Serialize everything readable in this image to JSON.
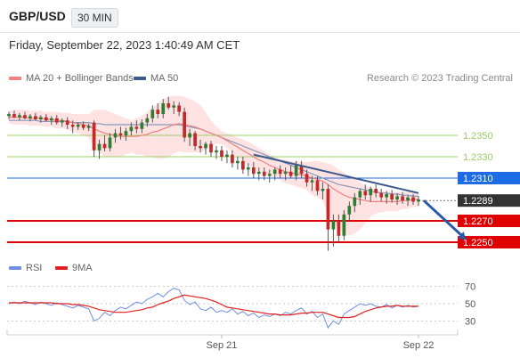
{
  "header": {
    "pair": "GBP/USD",
    "timeframe": "30 MIN"
  },
  "datetime": "Friday, September 22, 2023 1:40:49 AM CET",
  "legend": {
    "ma20": {
      "label": "MA 20 + Bollinger Bands",
      "color": "#f08080"
    },
    "ma50": {
      "label": "MA 50",
      "color": "#3b5a8c"
    }
  },
  "credit": "Research © 2023 Trading Central",
  "rsi_legend": {
    "rsi": {
      "label": "RSI",
      "color": "#6f8fe0"
    },
    "ma9": {
      "label": "9MA",
      "color": "#e02020"
    }
  },
  "chart_data": [
    {
      "type": "candlestick",
      "name": "price",
      "ylim": [
        1.2235,
        1.2395
      ],
      "x_ticks": [
        {
          "label": "Sep 21",
          "index": 40
        },
        {
          "label": "Sep 22",
          "index": 77
        }
      ],
      "levels": [
        {
          "value": 1.235,
          "label": "1.2350",
          "kind": "resistance-minor",
          "color": "#9ccc65"
        },
        {
          "value": 1.233,
          "label": "1.2330",
          "kind": "resistance-minor",
          "color": "#9ccc65"
        },
        {
          "value": 1.231,
          "label": "1.2310",
          "kind": "pivot",
          "color": "#1e6be6"
        },
        {
          "value": 1.2289,
          "label": "1.2289",
          "kind": "last-price",
          "color": "#333333"
        },
        {
          "value": 1.227,
          "label": "1.2270",
          "kind": "support",
          "color": "#e00000"
        },
        {
          "value": 1.225,
          "label": "1.2250",
          "kind": "support",
          "color": "#e00000"
        }
      ],
      "candles_ohlc": [
        [
          1.2368,
          1.2372,
          1.2365,
          1.237
        ],
        [
          1.237,
          1.2373,
          1.2366,
          1.2367
        ],
        [
          1.2367,
          1.2371,
          1.2364,
          1.2369
        ],
        [
          1.2369,
          1.2372,
          1.2365,
          1.2366
        ],
        [
          1.2366,
          1.237,
          1.2363,
          1.2368
        ],
        [
          1.2368,
          1.2371,
          1.2364,
          1.2365
        ],
        [
          1.2365,
          1.2369,
          1.2362,
          1.2367
        ],
        [
          1.2367,
          1.237,
          1.2363,
          1.2364
        ],
        [
          1.2364,
          1.2368,
          1.236,
          1.2366
        ],
        [
          1.2366,
          1.2369,
          1.236,
          1.2362
        ],
        [
          1.2362,
          1.2366,
          1.2358,
          1.2364
        ],
        [
          1.2364,
          1.2367,
          1.2356,
          1.236
        ],
        [
          1.236,
          1.2364,
          1.2352,
          1.2358
        ],
        [
          1.2358,
          1.2362,
          1.2355,
          1.236
        ],
        [
          1.236,
          1.2363,
          1.2355,
          1.2357
        ],
        [
          1.2357,
          1.2361,
          1.2354,
          1.2359
        ],
        [
          1.2362,
          1.2364,
          1.233,
          1.2336
        ],
        [
          1.2336,
          1.2346,
          1.2328,
          1.2342
        ],
        [
          1.2342,
          1.235,
          1.2335,
          1.2338
        ],
        [
          1.2338,
          1.2352,
          1.2335,
          1.2348
        ],
        [
          1.2348,
          1.2356,
          1.2343,
          1.2352
        ],
        [
          1.2352,
          1.2358,
          1.2346,
          1.235
        ],
        [
          1.235,
          1.2357,
          1.2345,
          1.2354
        ],
        [
          1.2354,
          1.2362,
          1.235,
          1.2358
        ],
        [
          1.2358,
          1.2364,
          1.2352,
          1.2356
        ],
        [
          1.2356,
          1.2365,
          1.2352,
          1.2362
        ],
        [
          1.2362,
          1.237,
          1.2358,
          1.2366
        ],
        [
          1.2366,
          1.2378,
          1.2362,
          1.2374
        ],
        [
          1.2374,
          1.238,
          1.2366,
          1.237
        ],
        [
          1.237,
          1.2384,
          1.2366,
          1.238
        ],
        [
          1.238,
          1.2386,
          1.2374,
          1.2376
        ],
        [
          1.2376,
          1.2382,
          1.237,
          1.2378
        ],
        [
          1.2378,
          1.2381,
          1.2368,
          1.2372
        ],
        [
          1.2372,
          1.2376,
          1.2344,
          1.2348
        ],
        [
          1.2348,
          1.2356,
          1.234,
          1.2352
        ],
        [
          1.2352,
          1.2354,
          1.2336,
          1.234
        ],
        [
          1.234,
          1.2346,
          1.2334,
          1.2338
        ],
        [
          1.2338,
          1.2344,
          1.2332,
          1.2342
        ],
        [
          1.2342,
          1.2345,
          1.233,
          1.2334
        ],
        [
          1.2334,
          1.234,
          1.2328,
          1.2336
        ],
        [
          1.2336,
          1.234,
          1.2326,
          1.233
        ],
        [
          1.233,
          1.2336,
          1.2324,
          1.2332
        ],
        [
          1.2332,
          1.2336,
          1.232,
          1.2324
        ],
        [
          1.2324,
          1.233,
          1.2318,
          1.2326
        ],
        [
          1.2326,
          1.233,
          1.2314,
          1.2318
        ],
        [
          1.2318,
          1.2324,
          1.2312,
          1.232
        ],
        [
          1.232,
          1.2325,
          1.231,
          1.2314
        ],
        [
          1.2314,
          1.232,
          1.2308,
          1.2316
        ],
        [
          1.2316,
          1.232,
          1.2308,
          1.2312
        ],
        [
          1.2312,
          1.2318,
          1.2306,
          1.2314
        ],
        [
          1.2314,
          1.232,
          1.2308,
          1.2318
        ],
        [
          1.2318,
          1.2322,
          1.231,
          1.2314
        ],
        [
          1.2314,
          1.232,
          1.2308,
          1.2316
        ],
        [
          1.2316,
          1.2322,
          1.231,
          1.2312
        ],
        [
          1.2312,
          1.2326,
          1.2308,
          1.2322
        ],
        [
          1.2322,
          1.2326,
          1.231,
          1.2314
        ],
        [
          1.2314,
          1.2318,
          1.2302,
          1.2306
        ],
        [
          1.2306,
          1.2312,
          1.2298,
          1.2308
        ],
        [
          1.2308,
          1.2312,
          1.2294,
          1.2298
        ],
        [
          1.2298,
          1.2306,
          1.229,
          1.23
        ],
        [
          1.23,
          1.2304,
          1.2242,
          1.2262
        ],
        [
          1.2262,
          1.2276,
          1.2246,
          1.227
        ],
        [
          1.227,
          1.2276,
          1.225,
          1.2256
        ],
        [
          1.2256,
          1.228,
          1.2252,
          1.2276
        ],
        [
          1.2276,
          1.2288,
          1.227,
          1.2284
        ],
        [
          1.2284,
          1.2296,
          1.2278,
          1.2292
        ],
        [
          1.2292,
          1.23,
          1.2285,
          1.2298
        ],
        [
          1.2298,
          1.2304,
          1.229,
          1.2294
        ],
        [
          1.2294,
          1.2302,
          1.2288,
          1.23
        ],
        [
          1.23,
          1.2304,
          1.2292,
          1.2296
        ],
        [
          1.2296,
          1.23,
          1.2288,
          1.2292
        ],
        [
          1.2292,
          1.2298,
          1.2286,
          1.2295
        ],
        [
          1.2295,
          1.2299,
          1.2287,
          1.229
        ],
        [
          1.229,
          1.2296,
          1.2285,
          1.2293
        ],
        [
          1.2293,
          1.2297,
          1.2286,
          1.2289
        ],
        [
          1.2289,
          1.2294,
          1.2284,
          1.2292
        ],
        [
          1.2292,
          1.2295,
          1.2285,
          1.2288
        ],
        [
          1.2288,
          1.2293,
          1.2284,
          1.229
        ]
      ],
      "ma20": [
        1.2367,
        1.2367,
        1.2367,
        1.2367,
        1.2366,
        1.2366,
        1.2366,
        1.2365,
        1.2365,
        1.2364,
        1.2364,
        1.2363,
        1.2362,
        1.2361,
        1.236,
        1.2359,
        1.2356,
        1.2354,
        1.2352,
        1.2351,
        1.235,
        1.2349,
        1.2349,
        1.2349,
        1.2349,
        1.235,
        1.2351,
        1.2353,
        1.2354,
        1.2356,
        1.2358,
        1.236,
        1.2361,
        1.236,
        1.2359,
        1.2358,
        1.2356,
        1.2354,
        1.2352,
        1.235,
        1.2348,
        1.2345,
        1.2342,
        1.2339,
        1.2336,
        1.2333,
        1.233,
        1.2327,
        1.2325,
        1.2322,
        1.232,
        1.2318,
        1.2316,
        1.2315,
        1.2314,
        1.2313,
        1.2312,
        1.231,
        1.2309,
        1.2307,
        1.2304,
        1.23,
        1.2297,
        1.2294,
        1.2292,
        1.2291,
        1.229,
        1.2289,
        1.2288,
        1.2288,
        1.2288,
        1.2288,
        1.2288,
        1.2288,
        1.2289,
        1.2289,
        1.229,
        1.229
      ],
      "bb_upper": [
        1.2373,
        1.2374,
        1.2374,
        1.2374,
        1.2373,
        1.2373,
        1.2373,
        1.2372,
        1.2372,
        1.2372,
        1.2371,
        1.2371,
        1.237,
        1.237,
        1.237,
        1.237,
        1.2374,
        1.2374,
        1.2374,
        1.2372,
        1.237,
        1.2368,
        1.2366,
        1.2364,
        1.2366,
        1.2368,
        1.2372,
        1.2376,
        1.238,
        1.2384,
        1.2386,
        1.2387,
        1.2387,
        1.2386,
        1.2384,
        1.2382,
        1.2378,
        1.2372,
        1.2364,
        1.2358,
        1.2354,
        1.2352,
        1.235,
        1.2348,
        1.2346,
        1.2344,
        1.2341,
        1.2338,
        1.2335,
        1.2332,
        1.233,
        1.2328,
        1.2327,
        1.2326,
        1.2326,
        1.2325,
        1.2325,
        1.2326,
        1.2326,
        1.2325,
        1.2324,
        1.2322,
        1.2318,
        1.2315,
        1.2312,
        1.2309,
        1.2306,
        1.2303,
        1.2301,
        1.2299,
        1.2298,
        1.2297,
        1.2297,
        1.2297,
        1.2297,
        1.2297,
        1.2297,
        1.2297
      ],
      "bb_lower": [
        1.2361,
        1.236,
        1.236,
        1.236,
        1.2359,
        1.2359,
        1.2359,
        1.2358,
        1.2358,
        1.2356,
        1.2357,
        1.2355,
        1.2354,
        1.2352,
        1.235,
        1.2348,
        1.2338,
        1.2334,
        1.233,
        1.233,
        1.233,
        1.233,
        1.2332,
        1.2334,
        1.2332,
        1.2332,
        1.233,
        1.233,
        1.2328,
        1.2328,
        1.233,
        1.2333,
        1.2335,
        1.2334,
        1.2334,
        1.2334,
        1.2334,
        1.2336,
        1.234,
        1.2342,
        1.2342,
        1.2338,
        1.2334,
        1.233,
        1.2326,
        1.2322,
        1.2319,
        1.2316,
        1.2315,
        1.2312,
        1.231,
        1.2308,
        1.2305,
        1.2304,
        1.2302,
        1.2301,
        1.2299,
        1.2294,
        1.2292,
        1.2289,
        1.2276,
        1.2268,
        1.2262,
        1.2258,
        1.2256,
        1.2258,
        1.2262,
        1.2268,
        1.2274,
        1.2277,
        1.2278,
        1.2279,
        1.2279,
        1.2279,
        1.2281,
        1.2281,
        1.2283,
        1.2283
      ],
      "ma50": [
        1.2364,
        1.2364,
        1.2364,
        1.2364,
        1.2364,
        1.2364,
        1.2363,
        1.2363,
        1.2363,
        1.2363,
        1.2363,
        1.2363,
        1.2362,
        1.2362,
        1.2362,
        1.2362,
        1.2361,
        1.2361,
        1.236,
        1.236,
        1.236,
        1.236,
        1.236,
        1.236,
        1.236,
        1.236,
        1.236,
        1.236,
        1.236,
        1.236,
        1.236,
        1.236,
        1.236,
        1.2359,
        1.2358,
        1.2357,
        1.2356,
        1.2354,
        1.2352,
        1.235,
        1.2348,
        1.2346,
        1.2344,
        1.2342,
        1.234,
        1.2338,
        1.2336,
        1.2334,
        1.2332,
        1.233,
        1.2328,
        1.2326,
        1.2324,
        1.2322,
        1.232,
        1.2318,
        1.2316,
        1.2314,
        1.2312,
        1.231,
        1.2308,
        1.2306,
        1.2304,
        1.2303,
        1.2302,
        1.2301,
        1.23,
        1.2299,
        1.2298,
        1.2297,
        1.2296,
        1.2296,
        1.2295,
        1.2295,
        1.2294,
        1.2294,
        1.2293,
        1.2293
      ],
      "trendline": [
        {
          "index": 46,
          "value": 1.2332
        },
        {
          "index": 77,
          "value": 1.2296
        }
      ],
      "forecast_arrow": [
        {
          "index": 78,
          "value": 1.2289
        },
        {
          "index": 86,
          "value": 1.2252
        }
      ]
    },
    {
      "type": "line",
      "name": "rsi",
      "ylim": [
        20,
        80
      ],
      "ticks": [
        {
          "value": 70,
          "label": "70"
        },
        {
          "value": 50,
          "label": "50"
        },
        {
          "value": 30,
          "label": "30"
        }
      ],
      "series": [
        {
          "name": "RSI",
          "color": "#6f8fe0",
          "values": [
            50,
            52,
            50,
            53,
            51,
            49,
            52,
            50,
            48,
            51,
            49,
            47,
            45,
            48,
            46,
            44,
            30,
            33,
            40,
            36,
            42,
            46,
            44,
            48,
            52,
            50,
            55,
            58,
            62,
            58,
            64,
            68,
            66,
            54,
            49,
            52,
            44,
            42,
            46,
            40,
            42,
            40,
            44,
            38,
            41,
            36,
            39,
            34,
            37,
            35,
            38,
            36,
            40,
            38,
            42,
            45,
            38,
            41,
            34,
            38,
            22,
            30,
            26,
            38,
            42,
            46,
            50,
            48,
            50,
            47,
            46,
            49,
            45,
            48,
            46,
            48,
            46,
            47
          ]
        },
        {
          "name": "9MA",
          "color": "#e02020",
          "values": [
            51,
            51,
            51,
            51,
            51,
            51,
            51,
            51,
            51,
            50,
            50,
            50,
            49,
            49,
            48,
            47,
            45,
            43,
            42,
            41,
            40,
            40,
            40,
            41,
            42,
            43,
            45,
            46,
            49,
            51,
            53,
            56,
            58,
            60,
            59,
            58,
            57,
            56,
            54,
            52,
            49,
            46,
            45,
            44,
            43,
            42,
            41,
            40,
            39,
            38,
            38,
            37,
            37,
            37,
            38,
            39,
            39,
            40,
            40,
            40,
            38,
            36,
            34,
            34,
            34,
            35,
            38,
            41,
            43,
            45,
            46,
            47,
            47,
            48,
            47,
            47,
            47,
            47
          ]
        }
      ]
    }
  ]
}
